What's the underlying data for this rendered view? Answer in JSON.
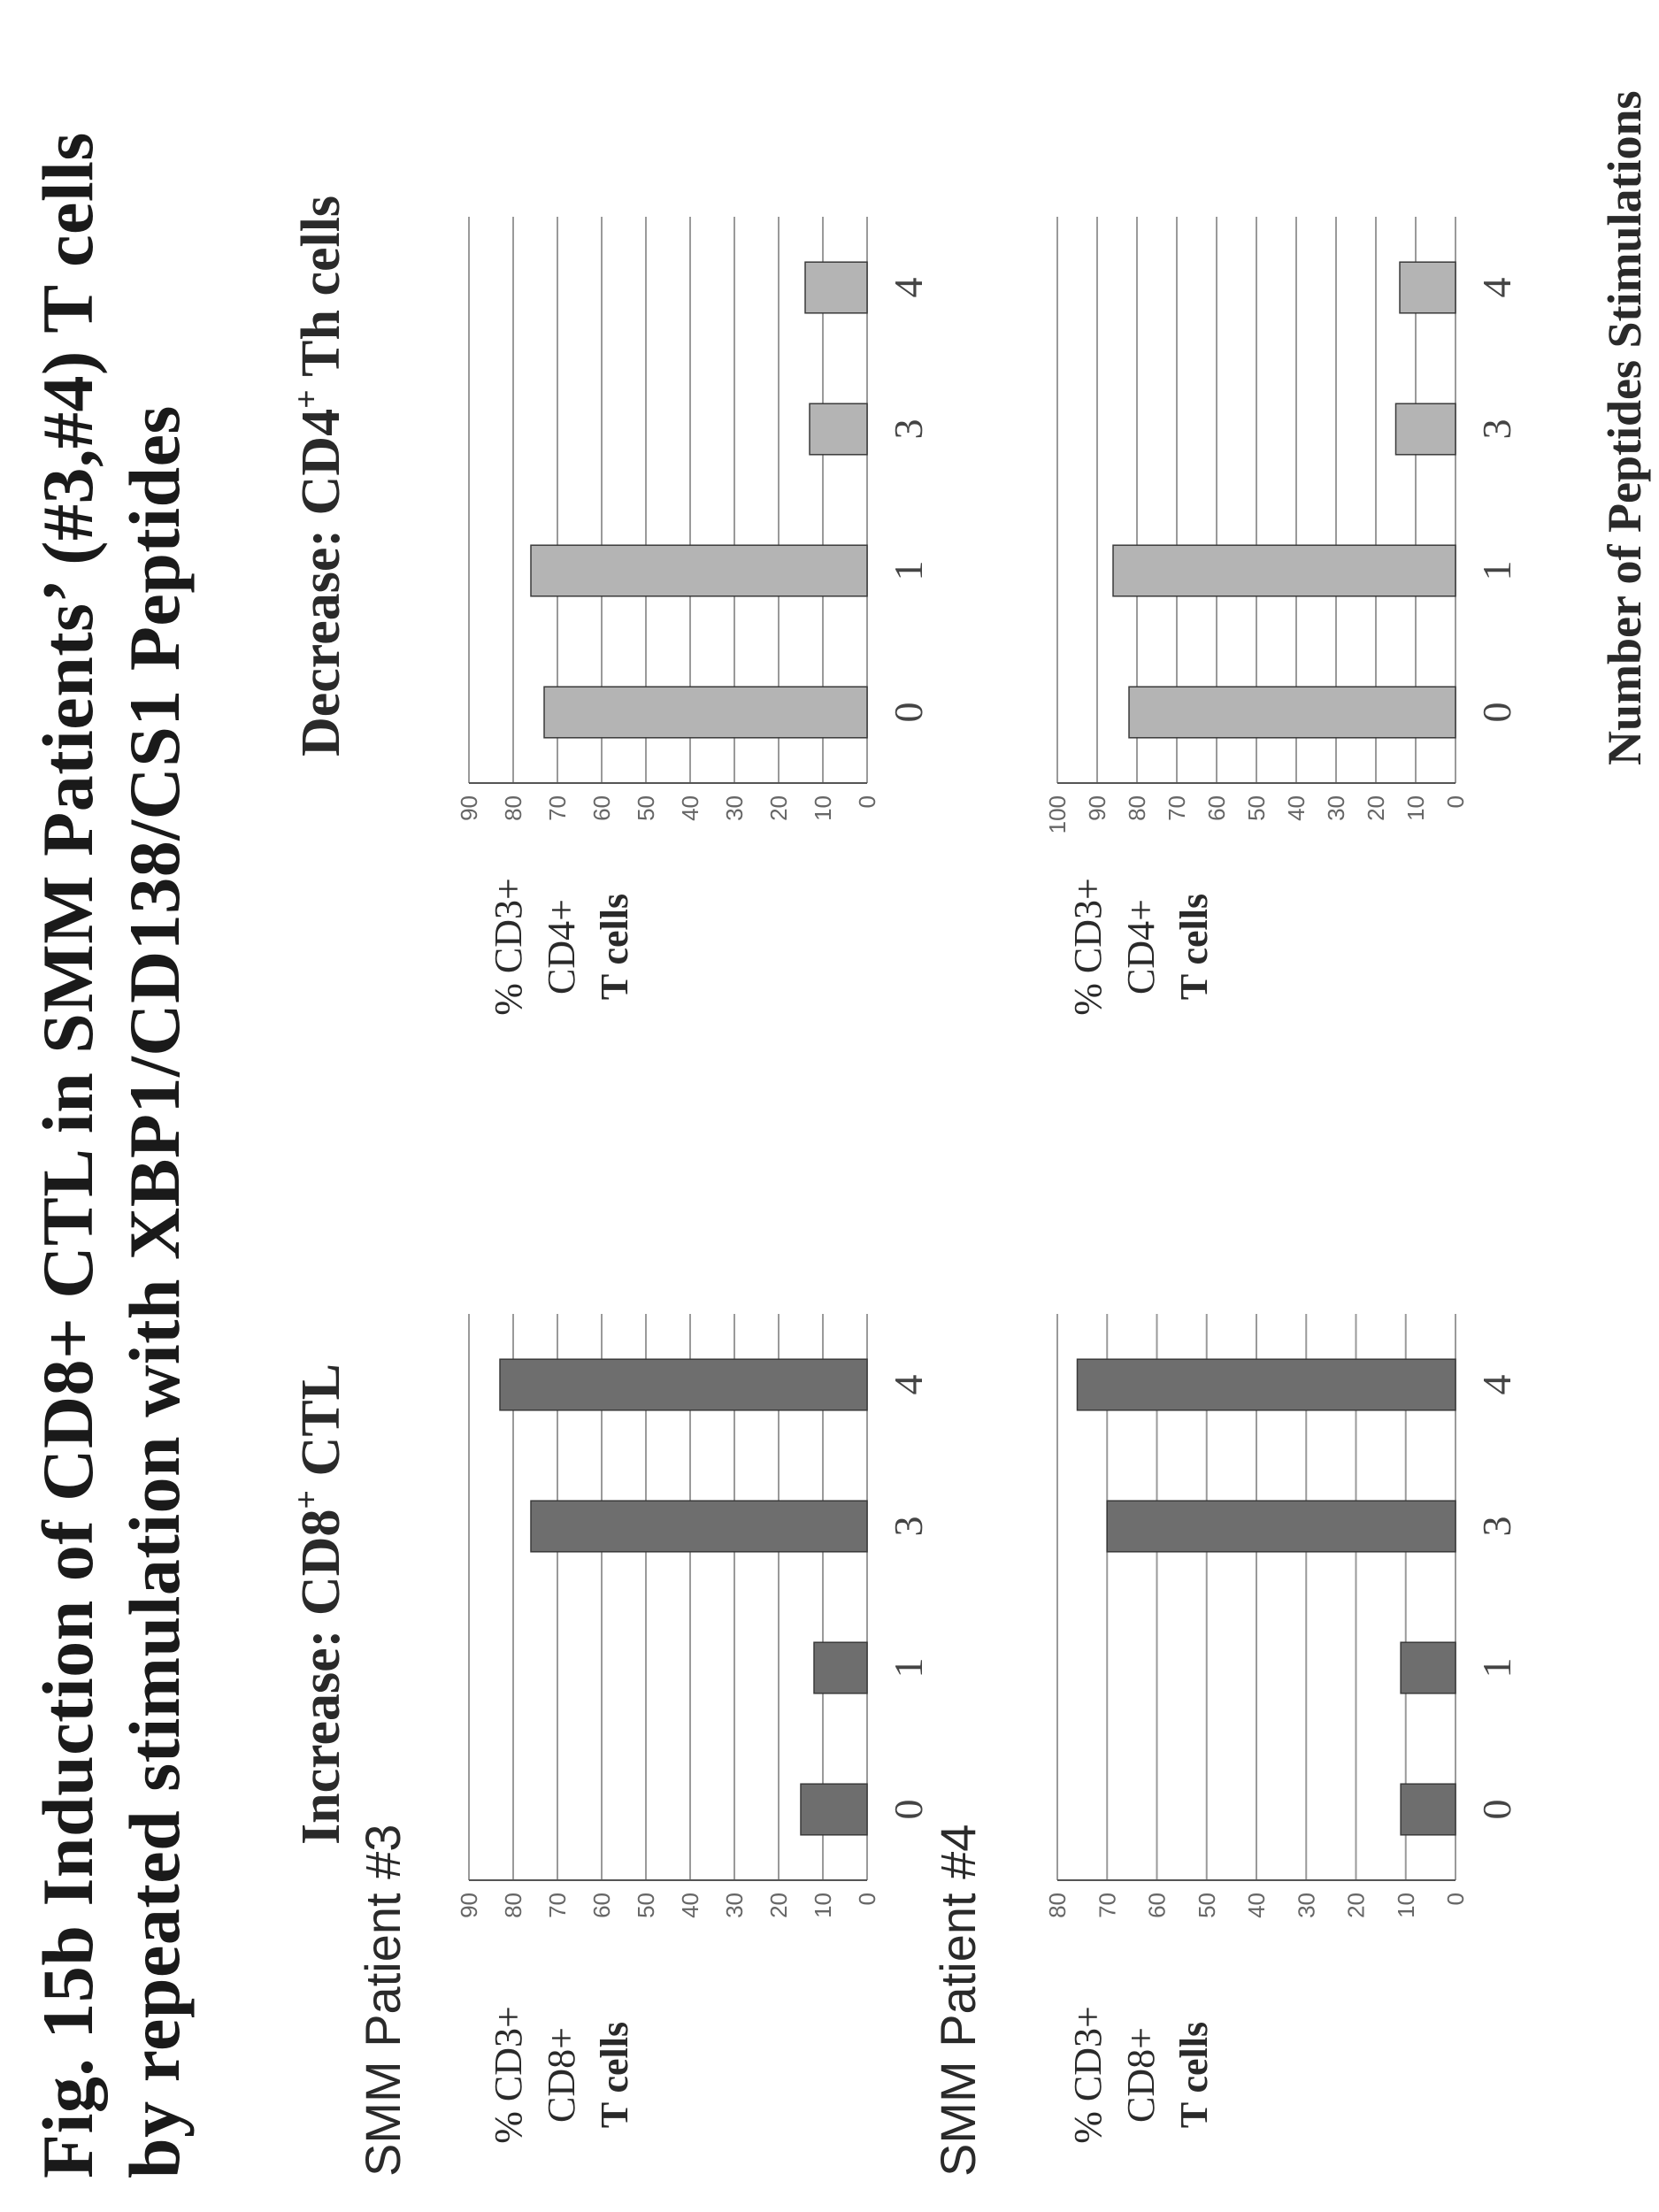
{
  "title": {
    "line1": "Fig. 15b Induction of CD8+ CTL in SMM Patients’ (#3,#4) T cells",
    "line2": "by repeated stimulation with XBP1/CD138/CS1 Peptides"
  },
  "headings": {
    "increase": {
      "prefix": "Increase: CD8",
      "sup": "+",
      "suffix": " CTL"
    },
    "decrease": {
      "prefix": "Decrease: CD4",
      "sup": "+",
      "suffix": " Th cells"
    }
  },
  "patients": {
    "p3": "SMM Patient #3",
    "p4": "SMM Patient #4"
  },
  "ylabels": {
    "cd8": [
      "% CD3+",
      "CD8+",
      "T cells"
    ],
    "cd4": [
      "% CD3+",
      "CD4+",
      "T cells"
    ]
  },
  "xlabel": "Number of Peptides Stimulations",
  "colors": {
    "cd8_bar": "#6e6e6e",
    "cd4_bar": "#b4b4b4",
    "grid": "#9a9a9a",
    "axis": "#555555"
  },
  "chart_data": [
    {
      "id": "p3_cd8",
      "type": "bar",
      "categories": [
        "0",
        "1",
        "3",
        "4"
      ],
      "values": [
        15,
        12,
        76,
        83
      ],
      "ylim": [
        0,
        90
      ],
      "yticks": [
        0,
        10,
        20,
        30,
        40,
        50,
        60,
        70,
        80,
        90
      ],
      "ylabel": "% CD3+ CD8+ T cells",
      "xlabel": ""
    },
    {
      "id": "p3_cd4",
      "type": "bar",
      "categories": [
        "0",
        "1",
        "3",
        "4"
      ],
      "values": [
        73,
        76,
        13,
        14
      ],
      "ylim": [
        0,
        90
      ],
      "yticks": [
        0,
        10,
        20,
        30,
        40,
        50,
        60,
        70,
        80,
        90
      ],
      "ylabel": "% CD3+ CD4+ T cells",
      "xlabel": ""
    },
    {
      "id": "p4_cd8",
      "type": "bar",
      "categories": [
        "0",
        "1",
        "3",
        "4"
      ],
      "values": [
        11,
        11,
        70,
        76
      ],
      "ylim": [
        0,
        80
      ],
      "yticks": [
        0,
        10,
        20,
        30,
        40,
        50,
        60,
        70,
        80
      ],
      "ylabel": "% CD3+ CD8+ T cells",
      "xlabel": "Number of Peptides Stimulations"
    },
    {
      "id": "p4_cd4",
      "type": "bar",
      "categories": [
        "0",
        "1",
        "3",
        "4"
      ],
      "values": [
        82,
        86,
        15,
        14
      ],
      "ylim": [
        0,
        100
      ],
      "yticks": [
        0,
        10,
        20,
        30,
        40,
        50,
        60,
        70,
        80,
        90,
        100
      ],
      "ylabel": "% CD3+ CD4+ T cells",
      "xlabel": "Number of Peptides Stimulations"
    }
  ]
}
